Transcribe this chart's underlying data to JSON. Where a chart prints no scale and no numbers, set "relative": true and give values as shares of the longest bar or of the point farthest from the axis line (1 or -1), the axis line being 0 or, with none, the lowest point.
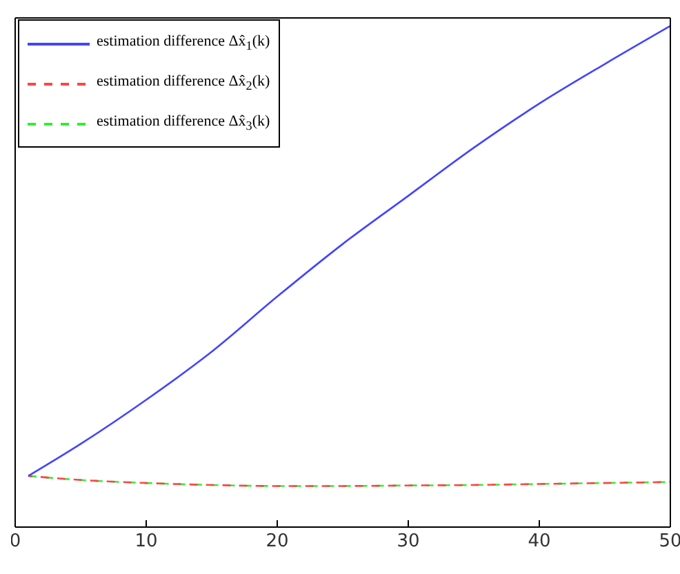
{
  "chart_data": {
    "type": "line",
    "relative": true,
    "x": [
      1,
      5,
      10,
      15,
      20,
      25,
      30,
      35,
      40,
      45,
      50
    ],
    "xlim": [
      0,
      50
    ],
    "xticks": [
      0,
      10,
      20,
      30,
      40,
      50
    ],
    "legend": "top left",
    "series": [
      {
        "name": "estimation difference Δx̂$_{1}$(k)",
        "color": "#4444ff",
        "line_style": "solid",
        "values": [
          0.102,
          0.166,
          0.254,
          0.35,
          0.46,
          0.565,
          0.661,
          0.757,
          0.845,
          0.924,
          1
        ]
      },
      {
        "name": "estimation difference Δx̂$_{2}$(k)",
        "color": "#ff4444",
        "line_style": "dashed",
        "values": [
          0.102,
          0.094,
          0.088,
          0.084,
          0.082,
          0.082,
          0.083,
          0.084,
          0.086,
          0.088,
          0.09
        ]
      },
      {
        "name": "estimation difference Δx̂$_{3}$(k)",
        "color": "#33ee33",
        "line_style": "dashed",
        "values": [
          0.102,
          0.094,
          0.088,
          0.084,
          0.082,
          0.082,
          0.083,
          0.084,
          0.086,
          0.088,
          0.09
        ]
      }
    ]
  }
}
